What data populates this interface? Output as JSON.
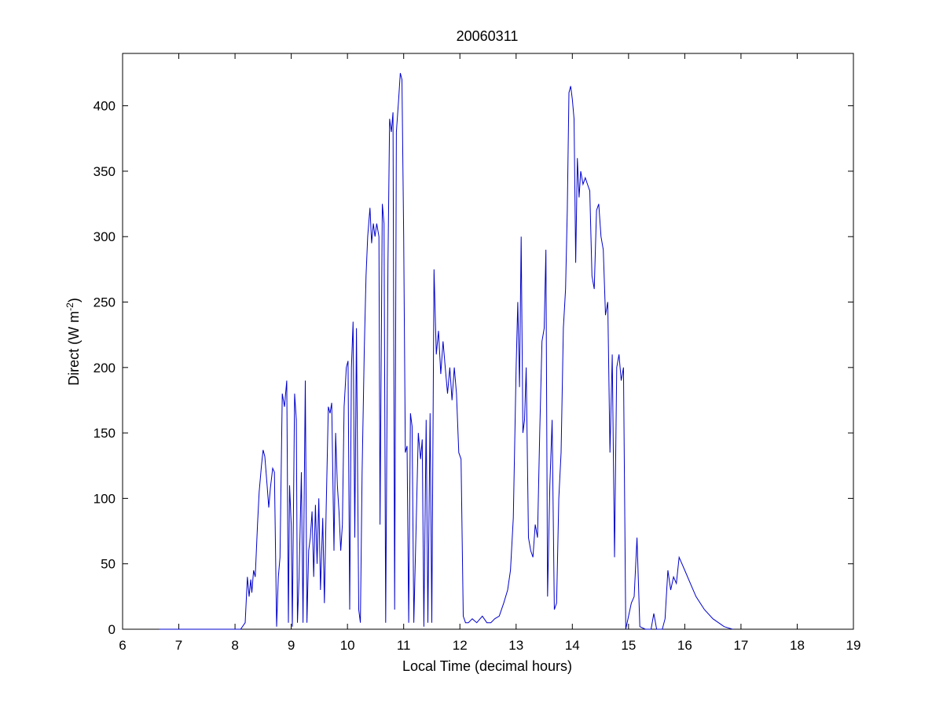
{
  "chart_data": {
    "type": "line",
    "title": "20060311",
    "xlabel": "Local Time (decimal hours)",
    "ylabel": {
      "main": "Direct (W m",
      "sup": "-2",
      "close": ")"
    },
    "xlim": [
      6,
      19
    ],
    "ylim": [
      0,
      440
    ],
    "xticks": [
      6,
      7,
      8,
      9,
      10,
      11,
      12,
      13,
      14,
      15,
      16,
      17,
      18,
      19
    ],
    "yticks": [
      0,
      50,
      100,
      150,
      200,
      250,
      300,
      350,
      400
    ],
    "grid": false,
    "series": [
      {
        "color": "#0000cc",
        "points": [
          [
            6.65,
            0
          ],
          [
            8.1,
            0
          ],
          [
            8.18,
            5
          ],
          [
            8.22,
            40
          ],
          [
            8.25,
            25
          ],
          [
            8.28,
            38
          ],
          [
            8.3,
            28
          ],
          [
            8.33,
            45
          ],
          [
            8.36,
            40
          ],
          [
            8.4,
            80
          ],
          [
            8.43,
            105
          ],
          [
            8.47,
            125
          ],
          [
            8.5,
            137
          ],
          [
            8.53,
            132
          ],
          [
            8.57,
            110
          ],
          [
            8.6,
            93
          ],
          [
            8.63,
            108
          ],
          [
            8.67,
            123
          ],
          [
            8.7,
            120
          ],
          [
            8.74,
            2
          ],
          [
            8.77,
            40
          ],
          [
            8.8,
            55
          ],
          [
            8.84,
            180
          ],
          [
            8.88,
            170
          ],
          [
            8.92,
            190
          ],
          [
            8.95,
            5
          ],
          [
            8.97,
            110
          ],
          [
            9.0,
            80
          ],
          [
            9.02,
            2
          ],
          [
            9.06,
            180
          ],
          [
            9.09,
            160
          ],
          [
            9.11,
            5
          ],
          [
            9.14,
            40
          ],
          [
            9.18,
            120
          ],
          [
            9.21,
            5
          ],
          [
            9.25,
            190
          ],
          [
            9.28,
            5
          ],
          [
            9.31,
            60
          ],
          [
            9.34,
            70
          ],
          [
            9.37,
            90
          ],
          [
            9.4,
            40
          ],
          [
            9.43,
            95
          ],
          [
            9.46,
            50
          ],
          [
            9.49,
            100
          ],
          [
            9.52,
            30
          ],
          [
            9.56,
            85
          ],
          [
            9.59,
            20
          ],
          [
            9.62,
            90
          ],
          [
            9.66,
            170
          ],
          [
            9.69,
            165
          ],
          [
            9.72,
            173
          ],
          [
            9.76,
            60
          ],
          [
            9.79,
            150
          ],
          [
            9.82,
            110
          ],
          [
            9.85,
            90
          ],
          [
            9.88,
            60
          ],
          [
            9.91,
            80
          ],
          [
            9.94,
            170
          ],
          [
            9.98,
            200
          ],
          [
            10.01,
            205
          ],
          [
            10.04,
            15
          ],
          [
            10.07,
            200
          ],
          [
            10.1,
            235
          ],
          [
            10.13,
            70
          ],
          [
            10.16,
            230
          ],
          [
            10.2,
            15
          ],
          [
            10.23,
            5
          ],
          [
            10.26,
            120
          ],
          [
            10.3,
            215
          ],
          [
            10.33,
            270
          ],
          [
            10.36,
            300
          ],
          [
            10.4,
            322
          ],
          [
            10.43,
            295
          ],
          [
            10.46,
            310
          ],
          [
            10.49,
            300
          ],
          [
            10.52,
            310
          ],
          [
            10.56,
            300
          ],
          [
            10.58,
            80
          ],
          [
            10.62,
            325
          ],
          [
            10.65,
            310
          ],
          [
            10.68,
            5
          ],
          [
            10.72,
            280
          ],
          [
            10.75,
            390
          ],
          [
            10.78,
            380
          ],
          [
            10.81,
            395
          ],
          [
            10.84,
            15
          ],
          [
            10.87,
            380
          ],
          [
            10.91,
            405
          ],
          [
            10.94,
            425
          ],
          [
            10.97,
            420
          ],
          [
            11.0,
            300
          ],
          [
            11.03,
            135
          ],
          [
            11.06,
            140
          ],
          [
            11.09,
            5
          ],
          [
            11.12,
            165
          ],
          [
            11.15,
            155
          ],
          [
            11.18,
            5
          ],
          [
            11.22,
            75
          ],
          [
            11.26,
            150
          ],
          [
            11.3,
            130
          ],
          [
            11.33,
            145
          ],
          [
            11.36,
            2
          ],
          [
            11.4,
            160
          ],
          [
            11.43,
            5
          ],
          [
            11.47,
            165
          ],
          [
            11.5,
            5
          ],
          [
            11.54,
            275
          ],
          [
            11.58,
            210
          ],
          [
            11.62,
            228
          ],
          [
            11.66,
            195
          ],
          [
            11.7,
            220
          ],
          [
            11.74,
            200
          ],
          [
            11.78,
            180
          ],
          [
            11.82,
            200
          ],
          [
            11.86,
            175
          ],
          [
            11.9,
            200
          ],
          [
            11.94,
            180
          ],
          [
            11.98,
            135
          ],
          [
            12.02,
            130
          ],
          [
            12.06,
            10
          ],
          [
            12.1,
            5
          ],
          [
            12.15,
            5
          ],
          [
            12.22,
            8
          ],
          [
            12.3,
            5
          ],
          [
            12.4,
            10
          ],
          [
            12.48,
            5
          ],
          [
            12.55,
            5
          ],
          [
            12.62,
            8
          ],
          [
            12.7,
            10
          ],
          [
            12.78,
            20
          ],
          [
            12.85,
            30
          ],
          [
            12.9,
            45
          ],
          [
            12.95,
            85
          ],
          [
            13.0,
            200
          ],
          [
            13.03,
            250
          ],
          [
            13.06,
            185
          ],
          [
            13.09,
            300
          ],
          [
            13.12,
            150
          ],
          [
            13.15,
            160
          ],
          [
            13.18,
            200
          ],
          [
            13.22,
            70
          ],
          [
            13.26,
            60
          ],
          [
            13.3,
            55
          ],
          [
            13.34,
            80
          ],
          [
            13.38,
            70
          ],
          [
            13.42,
            150
          ],
          [
            13.46,
            220
          ],
          [
            13.5,
            230
          ],
          [
            13.53,
            290
          ],
          [
            13.56,
            25
          ],
          [
            13.6,
            110
          ],
          [
            13.64,
            160
          ],
          [
            13.68,
            15
          ],
          [
            13.72,
            20
          ],
          [
            13.76,
            100
          ],
          [
            13.8,
            135
          ],
          [
            13.84,
            230
          ],
          [
            13.88,
            260
          ],
          [
            13.91,
            320
          ],
          [
            13.94,
            410
          ],
          [
            13.97,
            415
          ],
          [
            14.0,
            405
          ],
          [
            14.03,
            390
          ],
          [
            14.06,
            280
          ],
          [
            14.09,
            360
          ],
          [
            14.12,
            330
          ],
          [
            14.15,
            350
          ],
          [
            14.19,
            340
          ],
          [
            14.23,
            345
          ],
          [
            14.27,
            340
          ],
          [
            14.31,
            335
          ],
          [
            14.35,
            270
          ],
          [
            14.39,
            260
          ],
          [
            14.43,
            320
          ],
          [
            14.47,
            325
          ],
          [
            14.51,
            300
          ],
          [
            14.55,
            290
          ],
          [
            14.59,
            240
          ],
          [
            14.63,
            250
          ],
          [
            14.67,
            135
          ],
          [
            14.71,
            210
          ],
          [
            14.75,
            55
          ],
          [
            14.79,
            200
          ],
          [
            14.83,
            210
          ],
          [
            14.87,
            190
          ],
          [
            14.91,
            200
          ],
          [
            14.95,
            0
          ],
          [
            15.05,
            20
          ],
          [
            15.1,
            25
          ],
          [
            15.15,
            70
          ],
          [
            15.2,
            2
          ],
          [
            15.3,
            0
          ],
          [
            15.4,
            0
          ],
          [
            15.45,
            12
          ],
          [
            15.5,
            0
          ],
          [
            15.6,
            0
          ],
          [
            15.65,
            8
          ],
          [
            15.7,
            45
          ],
          [
            15.75,
            30
          ],
          [
            15.8,
            40
          ],
          [
            15.85,
            35
          ],
          [
            15.9,
            55
          ],
          [
            15.95,
            50
          ],
          [
            16.0,
            45
          ],
          [
            16.1,
            35
          ],
          [
            16.2,
            25
          ],
          [
            16.35,
            15
          ],
          [
            16.5,
            8
          ],
          [
            16.7,
            2
          ],
          [
            16.85,
            0
          ]
        ]
      }
    ]
  }
}
